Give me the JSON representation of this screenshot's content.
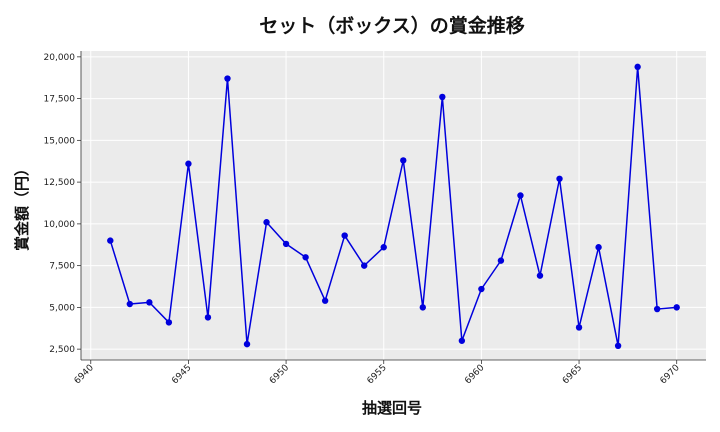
{
  "chart_data": {
    "type": "line",
    "title": "セット（ボックス）の賞金推移",
    "xlabel": "抽選回号",
    "ylabel": "賞金額（円）",
    "xlim": [
      6939.5,
      6971.5
    ],
    "ylim": [
      1850,
      20350
    ],
    "xticks": [
      6940,
      6945,
      6950,
      6955,
      6960,
      6965,
      6970
    ],
    "xtick_labels": [
      "6940",
      "6945",
      "6950",
      "6955",
      "6960",
      "6965",
      "6970"
    ],
    "yticks": [
      2500,
      5000,
      7500,
      10000,
      12500,
      15000,
      17500,
      20000
    ],
    "ytick_labels": [
      "2,500",
      "5,000",
      "7,500",
      "10,000",
      "12,500",
      "15,000",
      "17,500",
      "20,000"
    ],
    "grid": true,
    "legend": "none",
    "x": [
      6941,
      6942,
      6943,
      6944,
      6945,
      6946,
      6947,
      6948,
      6949,
      6950,
      6951,
      6952,
      6953,
      6954,
      6955,
      6956,
      6957,
      6958,
      6959,
      6960,
      6961,
      6962,
      6963,
      6964,
      6965,
      6966,
      6967,
      6968,
      6969,
      6970
    ],
    "series": [
      {
        "color": "#0000dd",
        "values": [
          9000,
          5200,
          5300,
          4100,
          13600,
          4400,
          18700,
          2800,
          10100,
          8800,
          8000,
          5400,
          9300,
          7500,
          8600,
          13800,
          5000,
          17600,
          3000,
          6100,
          7800,
          11700,
          6900,
          12700,
          3800,
          8600,
          2700,
          19400,
          4900,
          5000
        ]
      }
    ],
    "colors": {
      "plot_background": "#ebebeb",
      "grid": "#ffffff",
      "line": "#0000dd"
    }
  }
}
